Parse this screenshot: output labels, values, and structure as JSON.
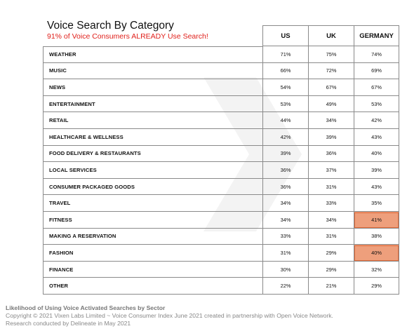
{
  "colors": {
    "subtitle": "#e0201b",
    "highlight": "#ee9f7c"
  },
  "footer": {
    "line1": "Likelihood of Using Voice Activated Searches by Sector",
    "line2": "Copyright © 2021 Vixen Labs Limited ~ Voice Consumer Index June 2021 created in partnership with Open Voice Network.",
    "line3": "Research conducted by Delineate in May 2021"
  },
  "chart_data": {
    "type": "table",
    "title": "Voice Search By Category",
    "subtitle": "91% of Voice Consumers ALREADY Use Search!",
    "columns": [
      "US",
      "UK",
      "GERMANY"
    ],
    "rows": [
      {
        "category": "WEATHER",
        "values": [
          "71%",
          "75%",
          "74%"
        ]
      },
      {
        "category": "MUSIC",
        "values": [
          "66%",
          "72%",
          "69%"
        ]
      },
      {
        "category": "NEWS",
        "values": [
          "54%",
          "67%",
          "67%"
        ]
      },
      {
        "category": "ENTERTAINMENT",
        "values": [
          "53%",
          "49%",
          "53%"
        ]
      },
      {
        "category": "RETAIL",
        "values": [
          "44%",
          "34%",
          "42%"
        ]
      },
      {
        "category": "HEALTHCARE & WELLNESS",
        "values": [
          "42%",
          "39%",
          "43%"
        ]
      },
      {
        "category": "FOOD DELIVERY & RESTAURANTS",
        "values": [
          "39%",
          "36%",
          "40%"
        ]
      },
      {
        "category": "LOCAL SERVICES",
        "values": [
          "36%",
          "37%",
          "39%"
        ]
      },
      {
        "category": "CONSUMER PACKAGED GOODS",
        "values": [
          "36%",
          "31%",
          "43%"
        ]
      },
      {
        "category": "TRAVEL",
        "values": [
          "34%",
          "33%",
          "35%"
        ]
      },
      {
        "category": "FITNESS",
        "values": [
          "34%",
          "34%",
          "41%"
        ],
        "highlight": [
          2
        ]
      },
      {
        "category": "MAKING A RESERVATION",
        "values": [
          "33%",
          "31%",
          "38%"
        ]
      },
      {
        "category": "FASHION",
        "values": [
          "31%",
          "29%",
          "40%"
        ],
        "highlight": [
          2
        ]
      },
      {
        "category": "FINANCE",
        "values": [
          "30%",
          "29%",
          "32%"
        ]
      },
      {
        "category": "OTHER",
        "values": [
          "22%",
          "21%",
          "29%"
        ]
      }
    ]
  }
}
